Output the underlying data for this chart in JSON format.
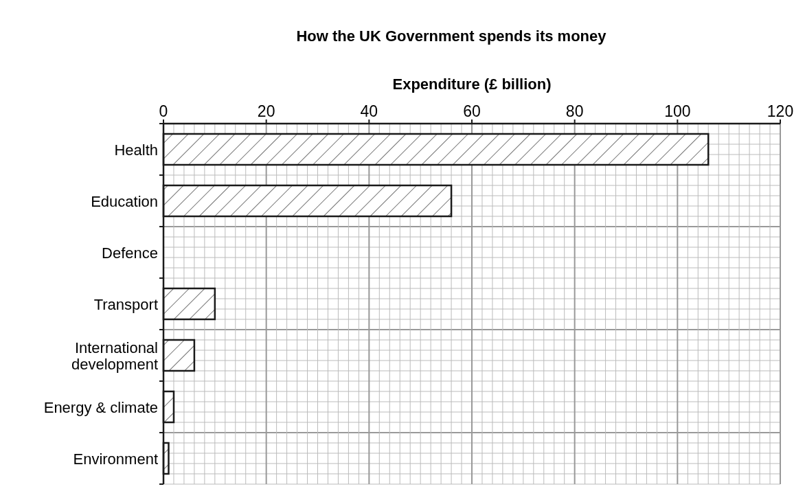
{
  "chart_data": {
    "type": "bar",
    "orientation": "horizontal",
    "title": "How the UK Government spends its money",
    "xlabel": "Expenditure (£ billion)",
    "categories": [
      "Health",
      "Education",
      "Defence",
      "Transport",
      "International development",
      "Energy & climate",
      "Environment"
    ],
    "values": [
      106,
      56,
      null,
      10,
      6,
      2,
      1
    ],
    "color": "#1a1a1a",
    "xlim": [
      0,
      120
    ],
    "xticks": [
      0,
      20,
      40,
      60,
      80,
      100,
      120
    ],
    "grid": true
  }
}
